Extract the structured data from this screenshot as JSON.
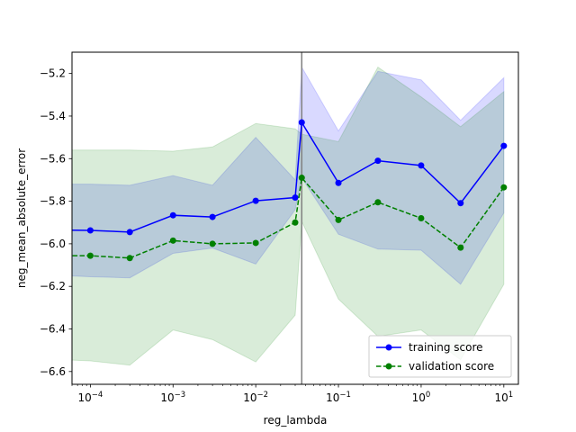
{
  "chart_data": {
    "type": "line",
    "title": "",
    "xlabel": "reg_lambda",
    "ylabel": "neg_mean_absolute_error",
    "xscale": "log",
    "xlim": [
      6e-05,
      15
    ],
    "ylim": [
      -6.66,
      -5.1
    ],
    "grid": false,
    "legend_position": "lower right",
    "x": [
      5e-05,
      0.0001,
      0.0003,
      0.001,
      0.003,
      0.01,
      0.03,
      0.036,
      0.1,
      0.3,
      1,
      3,
      10
    ],
    "xtick_values": [
      0.0001,
      0.001,
      0.01,
      0.1,
      1,
      10
    ],
    "xtick_labels": [
      {
        "base": "10",
        "exp": "−4"
      },
      {
        "base": "10",
        "exp": "−3"
      },
      {
        "base": "10",
        "exp": "−2"
      },
      {
        "base": "10",
        "exp": "−1"
      },
      {
        "base": "10",
        "exp": "0"
      },
      {
        "base": "10",
        "exp": "1"
      }
    ],
    "yticks": [
      "−5.2",
      "−5.4",
      "−5.6",
      "−5.8",
      "−6.0",
      "−6.2",
      "−6.4",
      "−6.6"
    ],
    "ytick_values": [
      -5.2,
      -5.4,
      -5.6,
      -5.8,
      -6.0,
      -6.2,
      -6.4,
      -6.6
    ],
    "best_param_line": 0.036,
    "series": [
      {
        "name": "training score",
        "color": "#0000ff",
        "band_color": "#0000ff",
        "line_style": "solid",
        "values": [
          -5.936,
          -5.937,
          -5.945,
          -5.866,
          -5.874,
          -5.798,
          -5.783,
          -5.43,
          -5.714,
          -5.61,
          -5.632,
          -5.809,
          -5.54
        ],
        "upper": [
          -5.72,
          -5.72,
          -5.725,
          -5.68,
          -5.725,
          -5.5,
          -5.7,
          -5.17,
          -5.47,
          -5.19,
          -5.23,
          -5.42,
          -5.22
        ],
        "lower": [
          -6.15,
          -6.155,
          -6.16,
          -6.045,
          -6.02,
          -6.095,
          -5.84,
          -5.69,
          -5.955,
          -6.025,
          -6.03,
          -6.19,
          -5.855
        ]
      },
      {
        "name": "validation score",
        "color": "#008000",
        "band_color": "#008000",
        "line_style": "dashed",
        "values": [
          -6.056,
          -6.056,
          -6.067,
          -5.985,
          -6.0,
          -5.996,
          -5.9,
          -5.69,
          -5.888,
          -5.805,
          -5.88,
          -6.018,
          -5.735
        ],
        "upper": [
          -5.56,
          -5.56,
          -5.56,
          -5.565,
          -5.545,
          -5.435,
          -5.46,
          -5.485,
          -5.52,
          -5.17,
          -5.31,
          -5.45,
          -5.285
        ],
        "lower": [
          -6.545,
          -6.55,
          -6.57,
          -6.405,
          -6.45,
          -6.555,
          -6.335,
          -5.895,
          -6.26,
          -6.435,
          -6.405,
          -6.545,
          -6.19
        ]
      }
    ]
  }
}
